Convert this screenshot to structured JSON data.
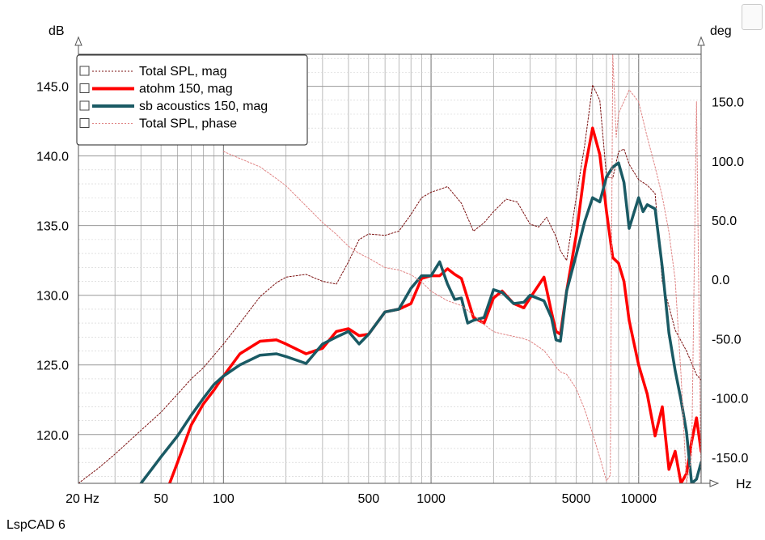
{
  "app": {
    "name": "LspCAD 6"
  },
  "chart_data": {
    "type": "line",
    "xscale": "log",
    "xlim": [
      20,
      20000
    ],
    "ylim": [
      116.5,
      147.3
    ],
    "y2lim": [
      -172,
      190
    ],
    "xunit": "Hz",
    "yunit": "dB",
    "y2unit": "deg",
    "grid": true,
    "legend_position": "top-left",
    "x_tick_labels": [
      {
        "v": 20,
        "t": "20 Hz"
      },
      {
        "v": 50,
        "t": "50"
      },
      {
        "v": 100,
        "t": "100"
      },
      {
        "v": 500,
        "t": "500"
      },
      {
        "v": 1000,
        "t": "1000"
      },
      {
        "v": 5000,
        "t": "5000"
      },
      {
        "v": 10000,
        "t": "10000"
      }
    ],
    "y_ticks": [
      "120.0",
      "125.0",
      "130.0",
      "135.0",
      "140.0",
      "145.0"
    ],
    "y2_ticks": [
      "-150.0",
      "-100.0",
      "-50.0",
      "0.0",
      "50.0",
      "100.0",
      "150.0"
    ],
    "series": [
      {
        "name": "Total SPL, mag",
        "axis": "left",
        "color": "#7b1010",
        "style": "dotted",
        "width": 1,
        "x": [
          20,
          25,
          30,
          40,
          50,
          60,
          70,
          80,
          100,
          120,
          150,
          180,
          200,
          250,
          300,
          350,
          400,
          450,
          500,
          600,
          700,
          800,
          900,
          1000,
          1100,
          1200,
          1400,
          1600,
          1800,
          2000,
          2300,
          2600,
          3000,
          3300,
          3600,
          4000,
          4200,
          4500,
          5000,
          5500,
          6000,
          6500,
          7000,
          7500,
          8000,
          8500,
          9000,
          10000,
          11000,
          12000,
          13000,
          14000,
          15000,
          17000,
          19000,
          20000
        ],
        "y": [
          116.5,
          117.6,
          118.6,
          120.3,
          121.6,
          122.9,
          124.0,
          124.8,
          126.5,
          128.0,
          129.9,
          130.9,
          131.3,
          131.5,
          131.0,
          130.8,
          132.4,
          134.0,
          134.4,
          134.3,
          134.6,
          135.8,
          137.0,
          137.4,
          137.6,
          137.8,
          136.6,
          134.6,
          135.2,
          136.0,
          136.9,
          136.7,
          135.1,
          134.9,
          135.6,
          134.2,
          133.2,
          132.5,
          137.0,
          140.8,
          145.1,
          144.0,
          138.5,
          138.4,
          140.3,
          140.5,
          139.4,
          138.3,
          137.9,
          137.3,
          131.0,
          129.2,
          127.5,
          126.0,
          124.3,
          123.9
        ]
      },
      {
        "name": "atohm 150, mag",
        "axis": "left",
        "color": "#ff0000",
        "style": "solid",
        "width": 3.5,
        "x": [
          55,
          60,
          70,
          80,
          90,
          100,
          120,
          150,
          180,
          200,
          250,
          300,
          350,
          400,
          450,
          500,
          600,
          700,
          800,
          900,
          1000,
          1100,
          1200,
          1300,
          1400,
          1600,
          1800,
          2000,
          2200,
          2500,
          2800,
          3000,
          3500,
          3800,
          4000,
          4200,
          4500,
          5000,
          5500,
          6000,
          6500,
          7000,
          7500,
          8000,
          8500,
          9000,
          10000,
          11000,
          12000,
          13000,
          14000,
          15000,
          16000,
          17000,
          18000,
          19000,
          20000
        ],
        "y": [
          116.5,
          118.0,
          120.7,
          122.2,
          123.2,
          124.2,
          125.8,
          126.7,
          126.8,
          126.5,
          125.8,
          126.2,
          127.4,
          127.6,
          127.1,
          127.2,
          128.8,
          129.0,
          129.4,
          131.2,
          131.4,
          131.4,
          131.9,
          131.5,
          131.2,
          128.4,
          128.0,
          129.8,
          130.3,
          129.4,
          129.1,
          129.8,
          131.3,
          128.8,
          127.4,
          127.2,
          130.3,
          134.3,
          139.0,
          142.0,
          140.1,
          136.0,
          132.7,
          132.3,
          131.0,
          128.2,
          125.0,
          122.9,
          119.9,
          122.0,
          117.5,
          118.8,
          116.5,
          117.2,
          119.5,
          121.2,
          118.8
        ]
      },
      {
        "name": "sb acoustics 150, mag",
        "axis": "left",
        "color": "#1a5a64",
        "style": "solid",
        "width": 3.5,
        "x": [
          40,
          45,
          50,
          60,
          70,
          80,
          90,
          100,
          120,
          150,
          180,
          200,
          250,
          300,
          350,
          400,
          450,
          500,
          600,
          700,
          800,
          900,
          1000,
          1100,
          1200,
          1300,
          1400,
          1500,
          1600,
          1800,
          2000,
          2200,
          2500,
          2800,
          3000,
          3500,
          3800,
          4000,
          4200,
          4500,
          5000,
          5500,
          6000,
          6500,
          7000,
          7500,
          8000,
          8500,
          9000,
          10000,
          10500,
          11000,
          12000,
          13000,
          14000,
          15000,
          16000,
          17000,
          18000,
          19000,
          20000
        ],
        "y": [
          116.5,
          117.5,
          118.4,
          119.9,
          121.4,
          122.6,
          123.6,
          124.2,
          125.0,
          125.7,
          125.8,
          125.6,
          125.1,
          126.5,
          127.0,
          127.4,
          126.5,
          127.2,
          128.8,
          129.0,
          130.5,
          131.4,
          131.4,
          132.4,
          130.8,
          129.7,
          129.8,
          128.0,
          128.2,
          128.4,
          130.4,
          130.2,
          129.4,
          129.5,
          130.0,
          129.6,
          128.4,
          126.8,
          126.7,
          130.3,
          132.9,
          135.3,
          137.0,
          136.7,
          138.5,
          139.2,
          139.5,
          138.1,
          134.8,
          137.0,
          136.0,
          136.5,
          136.2,
          132.0,
          127.3,
          124.6,
          122.5,
          120.2,
          116.5,
          116.8,
          118.0
        ]
      },
      {
        "name": "Total SPL, phase",
        "axis": "right",
        "color": "#e08585",
        "style": "dotted",
        "width": 1,
        "x": [
          100,
          120,
          150,
          180,
          200,
          250,
          300,
          350,
          400,
          450,
          500,
          600,
          700,
          800,
          900,
          1000,
          1200,
          1400,
          1600,
          1800,
          2000,
          2200,
          2500,
          2800,
          3000,
          3500,
          3800,
          4000,
          4200,
          4500,
          5000,
          5500,
          6000,
          6500,
          7000,
          7300,
          7500,
          7800,
          8000,
          9000,
          10000,
          11000,
          12000,
          13000,
          14000,
          15000,
          16000,
          17000,
          18000,
          19000,
          20000
        ],
        "y": [
          108,
          102,
          95,
          85,
          79,
          62,
          48,
          38,
          28,
          22,
          18,
          10,
          8,
          4,
          -2,
          -10,
          -18,
          -22,
          -30,
          -38,
          -44,
          -46,
          -48,
          -50,
          -52,
          -60,
          -68,
          -74,
          -78,
          -80,
          -92,
          -110,
          -130,
          -150,
          -170,
          -165,
          190,
          120,
          140,
          160,
          150,
          120,
          95,
          70,
          40,
          0,
          -80,
          -172,
          -150,
          150,
          -172
        ]
      }
    ]
  }
}
